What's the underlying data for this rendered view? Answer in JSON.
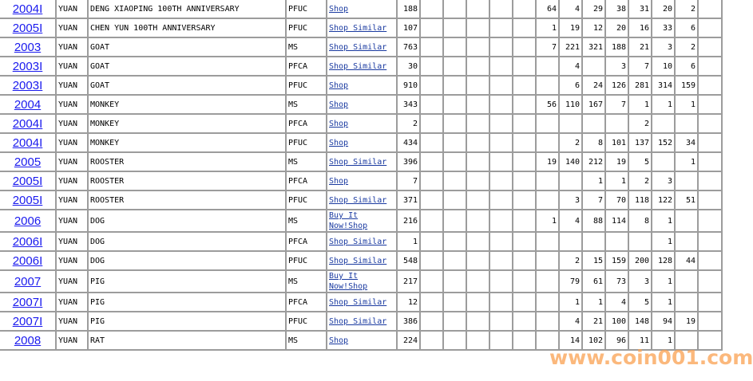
{
  "watermark": "www.coin001.com",
  "rows": [
    {
      "year": "2004I",
      "denom": "YUAN",
      "desc": "DENG XIAOPING 100TH ANNIVERSARY",
      "grade": "PFUC",
      "shop": "Shop",
      "total": "188",
      "counts": [
        "64",
        "4",
        "29",
        "38",
        "31",
        "20",
        "2"
      ]
    },
    {
      "year": "2005I",
      "denom": "YUAN",
      "desc": "CHEN YUN 100TH ANNIVERSARY",
      "grade": "PFUC",
      "shop": "Shop Similar",
      "total": "107",
      "counts": [
        "1",
        "19",
        "12",
        "20",
        "16",
        "33",
        "6"
      ]
    },
    {
      "year": "2003",
      "denom": "YUAN",
      "desc": "GOAT",
      "grade": "MS",
      "shop": "Shop Similar",
      "total": "763",
      "counts": [
        "7",
        "221",
        "321",
        "188",
        "21",
        "3",
        "2"
      ]
    },
    {
      "year": "2003I",
      "denom": "YUAN",
      "desc": "GOAT",
      "grade": "PFCA",
      "shop": "Shop Similar",
      "total": "30",
      "counts": [
        "",
        "4",
        "",
        "3",
        "7",
        "10",
        "6"
      ]
    },
    {
      "year": "2003I",
      "denom": "YUAN",
      "desc": "GOAT",
      "grade": "PFUC",
      "shop": "Shop",
      "total": "910",
      "counts": [
        "",
        "6",
        "24",
        "126",
        "281",
        "314",
        "159"
      ]
    },
    {
      "year": "2004",
      "denom": "YUAN",
      "desc": "MONKEY",
      "grade": "MS",
      "shop": "Shop",
      "total": "343",
      "counts": [
        "56",
        "110",
        "167",
        "7",
        "1",
        "1",
        "1"
      ]
    },
    {
      "year": "2004I",
      "denom": "YUAN",
      "desc": "MONKEY",
      "grade": "PFCA",
      "shop": "Shop",
      "total": "2",
      "counts": [
        "",
        "",
        "",
        "",
        "2",
        "",
        ""
      ]
    },
    {
      "year": "2004I",
      "denom": "YUAN",
      "desc": "MONKEY",
      "grade": "PFUC",
      "shop": "Shop",
      "total": "434",
      "counts": [
        "",
        "2",
        "8",
        "101",
        "137",
        "152",
        "34"
      ]
    },
    {
      "year": "2005",
      "denom": "YUAN",
      "desc": "ROOSTER",
      "grade": "MS",
      "shop": "Shop Similar",
      "total": "396",
      "counts": [
        "19",
        "140",
        "212",
        "19",
        "5",
        "",
        "1"
      ]
    },
    {
      "year": "2005I",
      "denom": "YUAN",
      "desc": "ROOSTER",
      "grade": "PFCA",
      "shop": "Shop",
      "total": "7",
      "counts": [
        "",
        "",
        "1",
        "1",
        "2",
        "3",
        ""
      ]
    },
    {
      "year": "2005I",
      "denom": "YUAN",
      "desc": "ROOSTER",
      "grade": "PFUC",
      "shop": "Shop Similar",
      "total": "371",
      "counts": [
        "",
        "3",
        "7",
        "70",
        "118",
        "122",
        "51"
      ]
    },
    {
      "year": "2006",
      "denom": "YUAN",
      "desc": "DOG",
      "grade": "MS",
      "shop": "Buy It Now!Shop",
      "total": "216",
      "counts": [
        "1",
        "4",
        "88",
        "114",
        "8",
        "1",
        ""
      ]
    },
    {
      "year": "2006I",
      "denom": "YUAN",
      "desc": "DOG",
      "grade": "PFCA",
      "shop": "Shop Similar",
      "total": "1",
      "counts": [
        "",
        "",
        "",
        "",
        "",
        "1",
        ""
      ]
    },
    {
      "year": "2006I",
      "denom": "YUAN",
      "desc": "DOG",
      "grade": "PFUC",
      "shop": "Shop Similar",
      "total": "548",
      "counts": [
        "",
        "2",
        "15",
        "159",
        "200",
        "128",
        "44"
      ]
    },
    {
      "year": "2007",
      "denom": "YUAN",
      "desc": "PIG",
      "grade": "MS",
      "shop": "Buy It Now!Shop",
      "total": "217",
      "counts": [
        "",
        "79",
        "61",
        "73",
        "3",
        "1",
        ""
      ]
    },
    {
      "year": "2007I",
      "denom": "YUAN",
      "desc": "PIG",
      "grade": "PFCA",
      "shop": "Shop Similar",
      "total": "12",
      "counts": [
        "",
        "1",
        "1",
        "4",
        "5",
        "1",
        ""
      ]
    },
    {
      "year": "2007I",
      "denom": "YUAN",
      "desc": "PIG",
      "grade": "PFUC",
      "shop": "Shop Similar",
      "total": "386",
      "counts": [
        "",
        "4",
        "21",
        "100",
        "148",
        "94",
        "19"
      ]
    },
    {
      "year": "2008",
      "denom": "YUAN",
      "desc": "RAT",
      "grade": "MS",
      "shop": "Shop",
      "total": "224",
      "counts": [
        "",
        "14",
        "102",
        "96",
        "11",
        "1",
        ""
      ]
    }
  ]
}
